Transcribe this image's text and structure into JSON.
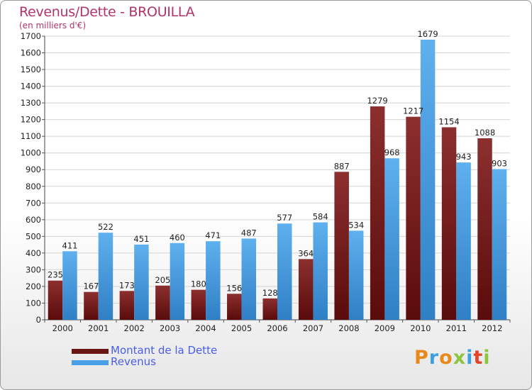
{
  "title": "Revenus/Dette - BROUILLA",
  "subtitle": "(en milliers d'€)",
  "logo": "Proxiti",
  "colors": {
    "debt_top": "#8c2f2f",
    "debt_bottom": "#5a0b0b",
    "rev_top": "#5fb0ee",
    "rev_bottom": "#2f7fc5",
    "title": "#b2336b",
    "legend_text": "#4a5ee8"
  },
  "chart_data": {
    "type": "bar",
    "title": "Revenus/Dette - BROUILLA",
    "ylabel": "(en milliers d'€)",
    "categories": [
      "2000",
      "2001",
      "2002",
      "2003",
      "2004",
      "2005",
      "2006",
      "2007",
      "2008",
      "2009",
      "2010",
      "2011",
      "2012"
    ],
    "series": [
      {
        "name": "Montant de la Dette",
        "values": [
          235,
          167,
          173,
          205,
          180,
          156,
          128,
          364,
          887,
          1279,
          1217,
          1154,
          1088
        ]
      },
      {
        "name": "Revenus",
        "values": [
          411,
          522,
          451,
          460,
          471,
          487,
          577,
          584,
          534,
          968,
          1679,
          943,
          903
        ]
      }
    ],
    "ylim": [
      0,
      1700
    ],
    "yticks": [
      0,
      100,
      200,
      300,
      400,
      500,
      600,
      700,
      800,
      900,
      1000,
      1100,
      1200,
      1300,
      1400,
      1500,
      1600,
      1700
    ],
    "grid": true,
    "legend_position": "bottom-left"
  }
}
